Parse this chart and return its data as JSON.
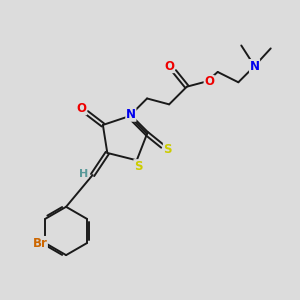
{
  "bg_color": "#dcdcdc",
  "bond_color": "#1a1a1a",
  "colors": {
    "N": "#0000ee",
    "O": "#ee0000",
    "S": "#cccc00",
    "Br": "#cc6600",
    "H": "#5a9a9a",
    "C": "#1a1a1a"
  },
  "lw": 1.4,
  "fs": 8.5
}
